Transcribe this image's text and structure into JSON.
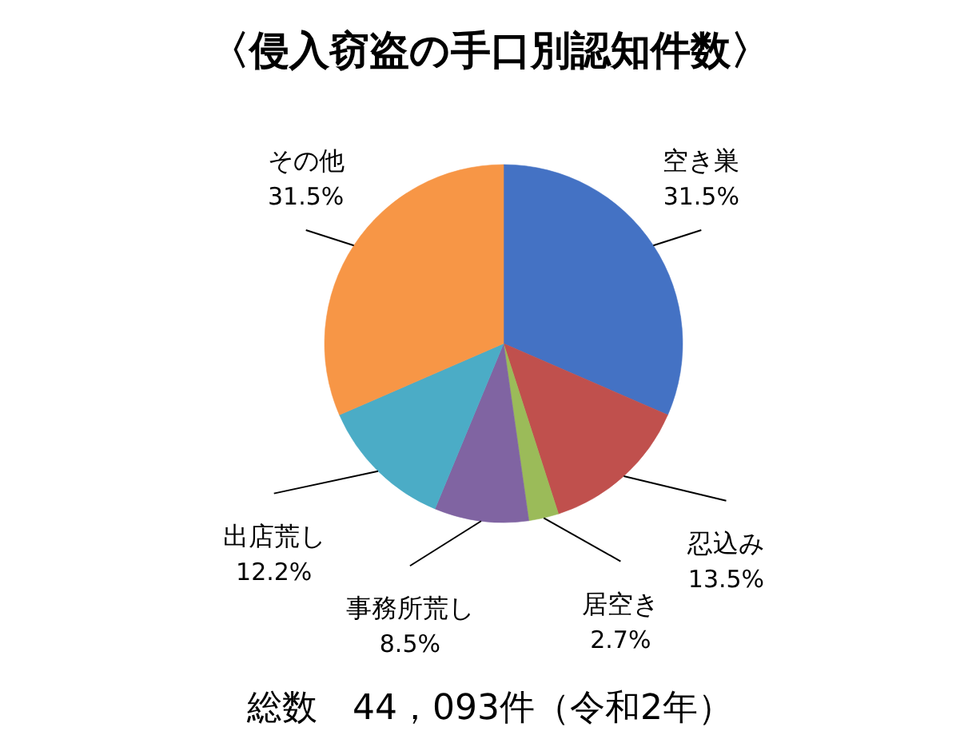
{
  "chart_data": {
    "type": "pie",
    "title": "〈侵入窃盗の手口別認知件数〉",
    "categories": [
      "空き巣",
      "忍込み",
      "居空き",
      "事務所荒し",
      "出店荒し",
      "その他"
    ],
    "values": [
      31.5,
      13.5,
      2.7,
      8.5,
      12.2,
      31.5
    ],
    "value_labels": [
      "31.5%",
      "13.5%",
      "2.7%",
      "8.5%",
      "12.2%",
      "31.5%"
    ],
    "colors": [
      "#4472c4",
      "#c0504d",
      "#9bbb59",
      "#8064a2",
      "#4bacc6",
      "#f79646"
    ],
    "annotations": [
      "総数　44，093件（令和2年）"
    ]
  }
}
